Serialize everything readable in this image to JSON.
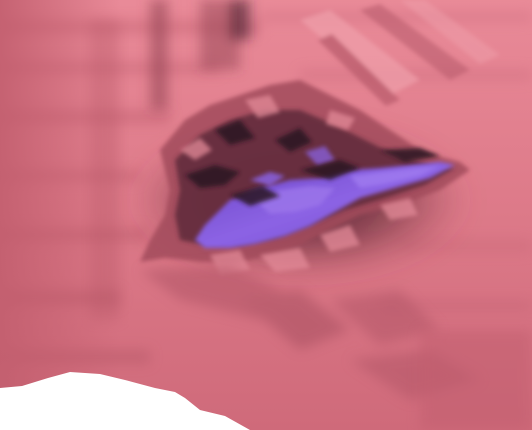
{
  "image": {
    "subject": "3d-surface-render",
    "colors": {
      "surface_base": "#d9707f",
      "surface_light": "#ee94a0",
      "surface_mid": "#c55f6f",
      "surface_shadow": "#7e3a45",
      "crevice_dark": "#2e1626",
      "cavity_purple": "#7d55d8",
      "cavity_purple_light": "#9b74ea",
      "background": "#ffffff"
    }
  }
}
